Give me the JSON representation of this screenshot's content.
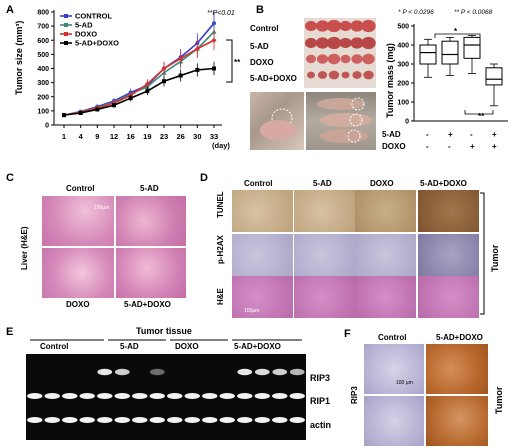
{
  "panels": {
    "A": {
      "letter": "A",
      "pvalue": "**P<0.01",
      "sig": "**",
      "chart_data": {
        "type": "line",
        "ylabel": "Tumor size (mm³)",
        "xlabel_unit": "(day)",
        "x": [
          1,
          4,
          9,
          12,
          16,
          19,
          23,
          26,
          30,
          33
        ],
        "ylim": [
          0,
          800
        ],
        "yticks": [
          0,
          100,
          200,
          300,
          400,
          500,
          600,
          700,
          800
        ],
        "series": [
          {
            "name": "CONTROL",
            "color": "#3a3ad0",
            "values": [
              70,
              95,
              130,
              170,
              230,
              280,
              400,
              480,
              580,
              720
            ]
          },
          {
            "name": "5-AD",
            "color": "#3a8a7a",
            "values": [
              70,
              92,
              125,
              160,
              220,
              270,
              370,
              450,
              540,
              660
            ]
          },
          {
            "name": "DOXO",
            "color": "#d83030",
            "values": [
              70,
              90,
              120,
              155,
              210,
              290,
              400,
              470,
              540,
              600
            ]
          },
          {
            "name": "5-AD+DOXO",
            "color": "#000000",
            "values": [
              70,
              85,
              110,
              140,
              190,
              240,
              310,
              350,
              390,
              400
            ]
          }
        ]
      }
    },
    "B": {
      "letter": "B",
      "row_labels": [
        "Control",
        "5-AD",
        "DOXO",
        "5-AD+DOXO"
      ],
      "pvals": [
        "* P < 0.0296",
        "** P < 0.0068"
      ],
      "chart_data": {
        "type": "box",
        "ylabel": "Tumor mass (mg)",
        "ylim": [
          0,
          500
        ],
        "yticks": [
          0,
          100,
          200,
          300,
          400,
          500
        ],
        "factors": [
          "5-AD",
          "DOXO"
        ],
        "signs": [
          [
            "-",
            "+",
            "-",
            "+"
          ],
          [
            "-",
            "-",
            "+",
            "+"
          ]
        ],
        "boxes": [
          {
            "min": 230,
            "q1": 300,
            "median": 360,
            "q3": 400,
            "max": 430
          },
          {
            "min": 240,
            "q1": 300,
            "median": 350,
            "q3": 420,
            "max": 440
          },
          {
            "min": 250,
            "q1": 330,
            "median": 400,
            "q3": 440,
            "max": 450
          },
          {
            "min": 80,
            "q1": 190,
            "median": 220,
            "q3": 280,
            "max": 300
          }
        ],
        "sig_marks": [
          "*",
          "**"
        ]
      }
    },
    "C": {
      "letter": "C",
      "top": [
        "Control",
        "5-AD"
      ],
      "bottom": [
        "DOXO",
        "5-AD+DOXO"
      ],
      "side": "Liver (H&E)",
      "scale": "100µm"
    },
    "D": {
      "letter": "D",
      "cols": [
        "Control",
        "5-AD",
        "DOXO",
        "5-AD+DOXO"
      ],
      "rows": [
        "TUNEL",
        "p-H2AX",
        "H&E"
      ],
      "side": "Tumor",
      "scale": "100µm"
    },
    "E": {
      "letter": "E",
      "title": "Tumor tissue",
      "groups": [
        "Control",
        "5-AD",
        "DOXO",
        "5-AD+DOXO"
      ],
      "bands": [
        "RIP3",
        "RIP1",
        "actin"
      ]
    },
    "F": {
      "letter": "F",
      "cols": [
        "Control",
        "5-AD+DOXO"
      ],
      "row": "RIP3",
      "side": "Tumor",
      "scale": "100 µm"
    }
  }
}
